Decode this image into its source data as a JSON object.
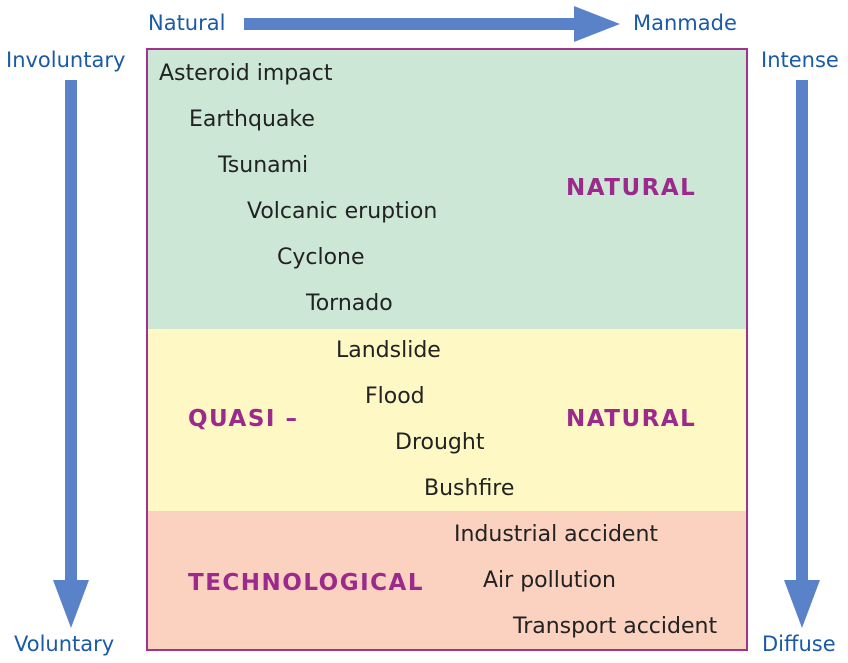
{
  "axes": {
    "top_left": "Natural",
    "top_right": "Manmade",
    "left_top": "Involuntary",
    "left_bottom": "Voluntary",
    "right_top": "Intense",
    "right_bottom": "Diffuse"
  },
  "categories": {
    "natural": "NATURAL",
    "quasi": "QUASI –",
    "quasi_natural": "NATURAL",
    "technological": "TECHNOLOGICAL"
  },
  "hazards": [
    "Asteroid impact",
    "Earthquake",
    "Tsunami",
    "Volcanic eruption",
    "Cyclone",
    "Tornado",
    "Landslide",
    "Flood",
    "Drought",
    "Bushfire",
    "Industrial accident",
    "Air pollution",
    "Transport accident"
  ],
  "colors": {
    "arrow": "#5a82c8",
    "axis_text": "#1a5aa6",
    "border": "#a0338e",
    "category_text": "#9b2a8c",
    "natural_band": "#cde7d6",
    "quasi_band": "#fdf8c4",
    "technological_band": "#fbd1c0"
  }
}
